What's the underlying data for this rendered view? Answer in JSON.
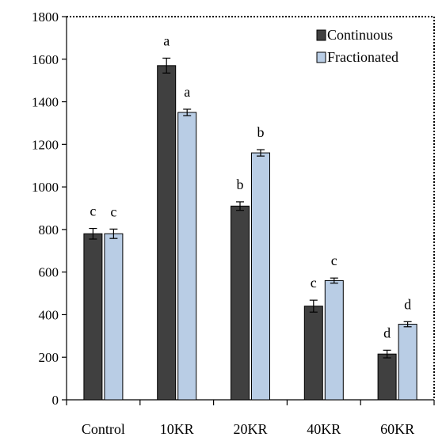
{
  "chart_data": {
    "type": "bar",
    "categories": [
      "Control",
      "10KR",
      "20KR",
      "40KR",
      "60KR"
    ],
    "series": [
      {
        "name": "Continuous",
        "color": "#404040",
        "values": [
          780,
          1570,
          910,
          440,
          215
        ],
        "errors": [
          25,
          35,
          20,
          28,
          18
        ],
        "labels": [
          "c",
          "a",
          "b",
          "c",
          "d"
        ]
      },
      {
        "name": "Fractionated",
        "color": "#b9cde5",
        "values": [
          780,
          1350,
          1160,
          560,
          355
        ],
        "errors": [
          22,
          15,
          15,
          12,
          12
        ],
        "labels": [
          "c",
          "a",
          "b",
          "c",
          "d"
        ]
      }
    ],
    "ylim": [
      0,
      1800
    ],
    "yticks": [
      "0",
      "200",
      "400",
      "600",
      "800",
      "1000",
      "1200",
      "1400",
      "1600",
      "1800"
    ],
    "legend_position": "top-right",
    "grid": false
  }
}
